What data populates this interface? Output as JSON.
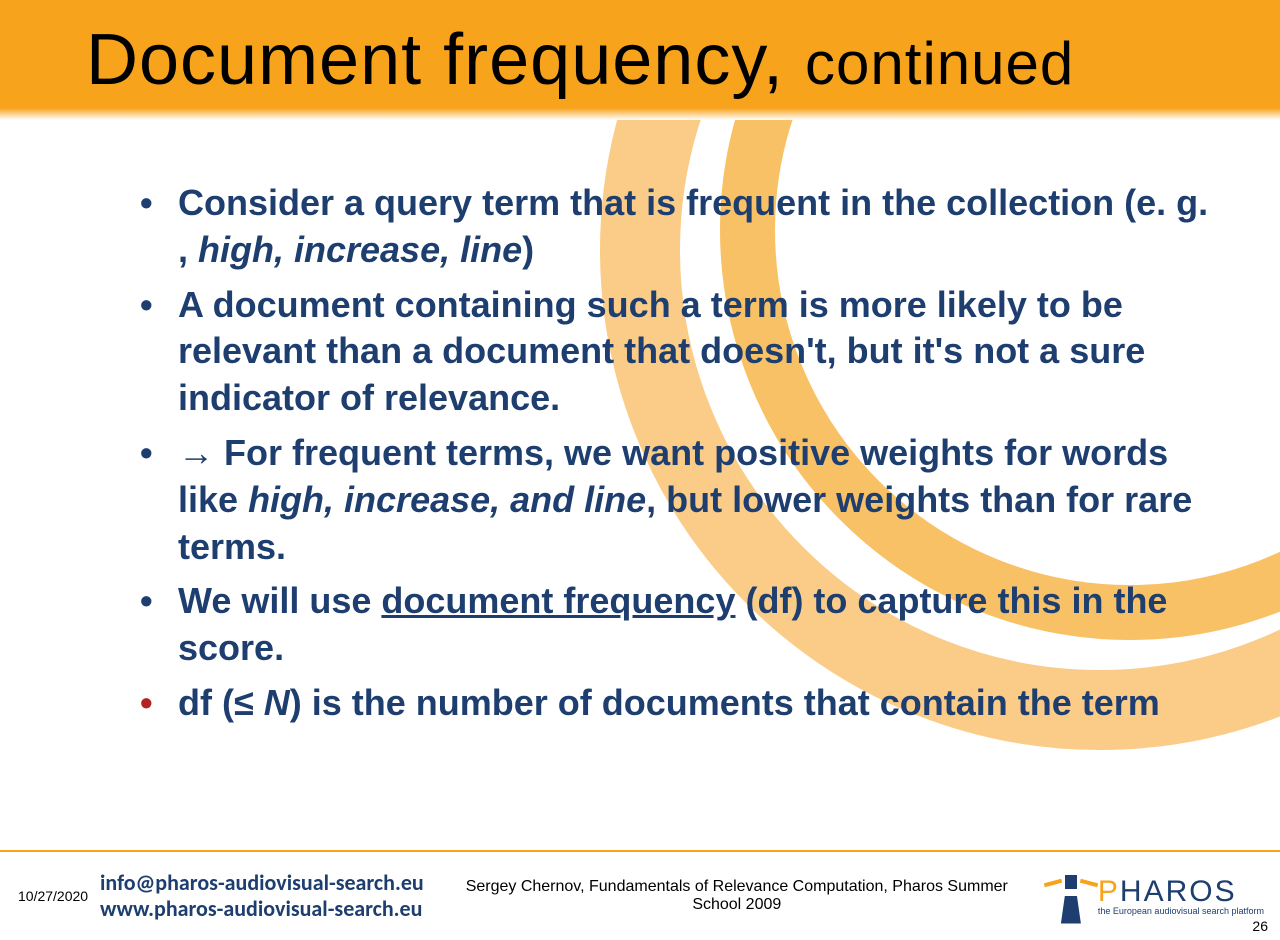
{
  "colors": {
    "header_bg": "#f7a31c",
    "text_primary": "#1d3e6e",
    "text_accent_red": "#b22222",
    "swoosh_outer": "#f9c77a",
    "swoosh_inner": "#f5a623",
    "background": "#ffffff"
  },
  "typography": {
    "title_font": "Impact",
    "title_size_pt": 54,
    "subtitle_size_pt": 45,
    "bullet_size_pt": 27,
    "bullet_weight": "bold"
  },
  "title": {
    "main": "Document frequency,",
    "sub": "continued"
  },
  "bullets": [
    {
      "segments": [
        {
          "t": "Consider a query term that is frequent in the collection (e. g. , "
        },
        {
          "t": "high, increase, line",
          "italic": true
        },
        {
          "t": ")"
        }
      ],
      "red": false
    },
    {
      "segments": [
        {
          "t": "A document containing such a term is more likely to be relevant than a document that doesn't, but it's not a sure indicator of relevance."
        }
      ],
      "red": false
    },
    {
      "segments": [
        {
          "t": "→ For frequent terms, we want positive weights for words like "
        },
        {
          "t": "high, increase, and line",
          "italic": true
        },
        {
          "t": ", but lower weights than for rare terms."
        }
      ],
      "red": false
    },
    {
      "segments": [
        {
          "t": "We will use "
        },
        {
          "t": "document frequency",
          "underline": true
        },
        {
          "t": " (df) to capture this in the score."
        }
      ],
      "red": false
    },
    {
      "segments": [
        {
          "t": "df (≤ "
        },
        {
          "t": "N",
          "italic": true
        },
        {
          "t": ") is the number of documents that contain the term"
        }
      ],
      "red": true
    }
  ],
  "footer": {
    "date": "10/27/2020",
    "email": "info@pharos-audiovisual-search.eu",
    "web": "www.pharos-audiovisual-search.eu",
    "credit": "Sergey Chernov, Fundamentals of Relevance Computation, Pharos Summer School 2009",
    "logo_main_pre": "P",
    "logo_main_post": "HAROS",
    "logo_tag": "the European audiovisual search platform",
    "page_num": "26"
  }
}
